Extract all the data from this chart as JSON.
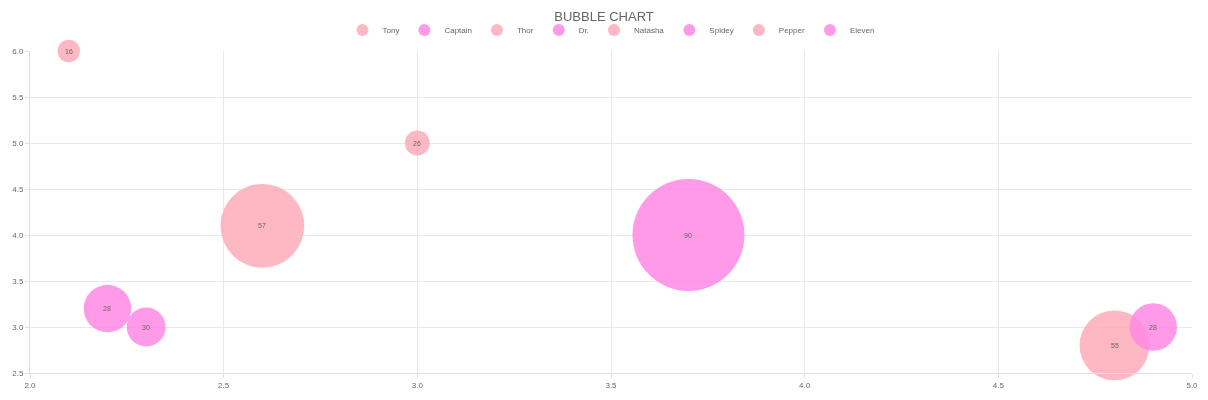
{
  "chart_data": {
    "type": "bubble",
    "title": "BUBBLE CHART",
    "xlim": [
      2.0,
      5.0
    ],
    "xticks": [
      {
        "value": 2,
        "label": "2.0"
      },
      2.5,
      {
        "value": 3,
        "label": "3.0"
      },
      3.5,
      {
        "value": 4,
        "label": "4.0"
      },
      4.5,
      {
        "value": 5,
        "label": "5.0"
      }
    ],
    "ylim": [
      2.5,
      6.0
    ],
    "yticks": [
      2.5,
      {
        "value": 3,
        "label": "3.0"
      },
      3.5,
      {
        "value": 4,
        "label": "4.0"
      },
      4.5,
      {
        "value": 5,
        "label": "5.0"
      },
      5.5,
      {
        "value": 6,
        "label": "6.0"
      }
    ],
    "annotations": [
      {
        "text": "16",
        "x": 2.1,
        "y": 6.0
      },
      {
        "text": "28",
        "x": 2.2,
        "y": 3.2
      },
      {
        "text": "57",
        "x": 2.6,
        "y": 4.1
      },
      {
        "text": "30",
        "x": 2.3,
        "y": 3.0
      },
      {
        "text": "26",
        "x": 3.0,
        "y": 5.0
      },
      {
        "text": "90",
        "x": 3.7,
        "y": 4.0
      },
      {
        "text": "55",
        "x": 4.8,
        "y": 2.8
      },
      {
        "text": "28",
        "x": 4.9,
        "y": 3.0
      }
    ],
    "grid": true,
    "legend": "top",
    "series": [
      {
        "name": "Tony",
        "color": "#fdabb9",
        "x": [
          2.1
        ],
        "values": [
          6.0
        ],
        "sizes": [
          0.04
        ]
      },
      {
        "name": "Captain",
        "color": "#fe88e3",
        "x": [
          2.2
        ],
        "values": [
          3.2
        ],
        "sizes": [
          0.18
        ]
      },
      {
        "name": "Thor",
        "color": "#fdabb9",
        "x": [
          2.6
        ],
        "values": [
          4.1
        ],
        "sizes": [
          0.56
        ]
      },
      {
        "name": "Dr.",
        "color": "#fe88e3",
        "x": [
          2.3
        ],
        "values": [
          3.0
        ],
        "sizes": [
          0.12
        ]
      },
      {
        "name": "Natasha",
        "color": "#fdabb9",
        "x": [
          3.0
        ],
        "values": [
          5.0
        ],
        "sizes": [
          0.05
        ]
      },
      {
        "name": "Spidey",
        "color": "#fe88e3",
        "x": [
          3.7
        ],
        "values": [
          4.0
        ],
        "sizes": [
          1
        ]
      },
      {
        "name": "Pepper",
        "color": "#fdabb9",
        "x": [
          4.8
        ],
        "values": [
          2.8
        ],
        "sizes": [
          0.39
        ]
      },
      {
        "name": "Eleven",
        "color": "#fe88e3",
        "x": [
          4.9
        ],
        "values": [
          3.0
        ],
        "sizes": [
          0.18
        ]
      }
    ]
  }
}
